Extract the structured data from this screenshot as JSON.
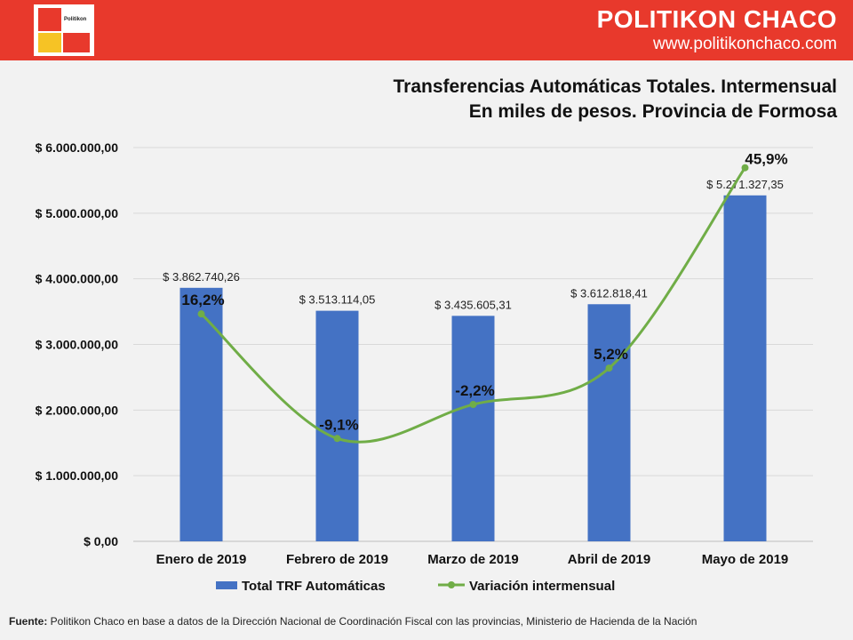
{
  "header": {
    "logo_text": "Politikon",
    "brand_name": "POLITIKON CHACO",
    "brand_url": "www.politikonchaco.com"
  },
  "title_line1": "Transferencias Automáticas Totales. Intermensual",
  "title_line2": "En miles de pesos. Provincia de Formosa",
  "chart_data": {
    "type": "bar",
    "categories": [
      "Enero de 2019",
      "Febrero de 2019",
      "Marzo de 2019",
      "Abril de 2019",
      "Mayo de 2019"
    ],
    "series": [
      {
        "name": "Total TRF Automáticas",
        "type": "bar",
        "color": "#4472c4",
        "values": [
          3862740.26,
          3513114.05,
          3435605.31,
          3612818.41,
          5271327.35
        ],
        "labels": [
          "$ 3.862.740,26",
          "$ 3.513.114,05",
          "$ 3.435.605,31",
          "$ 3.612.818,41",
          "$ 5.271.327,35"
        ]
      },
      {
        "name": "Variación intermensual",
        "type": "line",
        "color": "#70ad47",
        "values": [
          16.2,
          -9.1,
          -2.2,
          5.2,
          45.9
        ],
        "labels": [
          "16,2%",
          "-9,1%",
          "-2,2%",
          "5,2%",
          "45,9%"
        ]
      }
    ],
    "ylim": [
      0,
      6000000
    ],
    "yticks": [
      0,
      1000000,
      2000000,
      3000000,
      4000000,
      5000000,
      6000000
    ],
    "ytick_labels": [
      "$ 0,00",
      "$ 1.000.000,00",
      "$ 2.000.000,00",
      "$ 3.000.000,00",
      "$ 4.000.000,00",
      "$ 5.000.000,00",
      "$ 6.000.000,00"
    ],
    "secondary_ylim": [
      -30,
      50
    ],
    "grid": true,
    "legend_position": "bottom"
  },
  "footer": {
    "label": "Fuente:",
    "text": " Politikon Chaco en base a datos de la Dirección Nacional de Coordinación Fiscal con las provincias, Ministerio de Hacienda de la Nación"
  }
}
